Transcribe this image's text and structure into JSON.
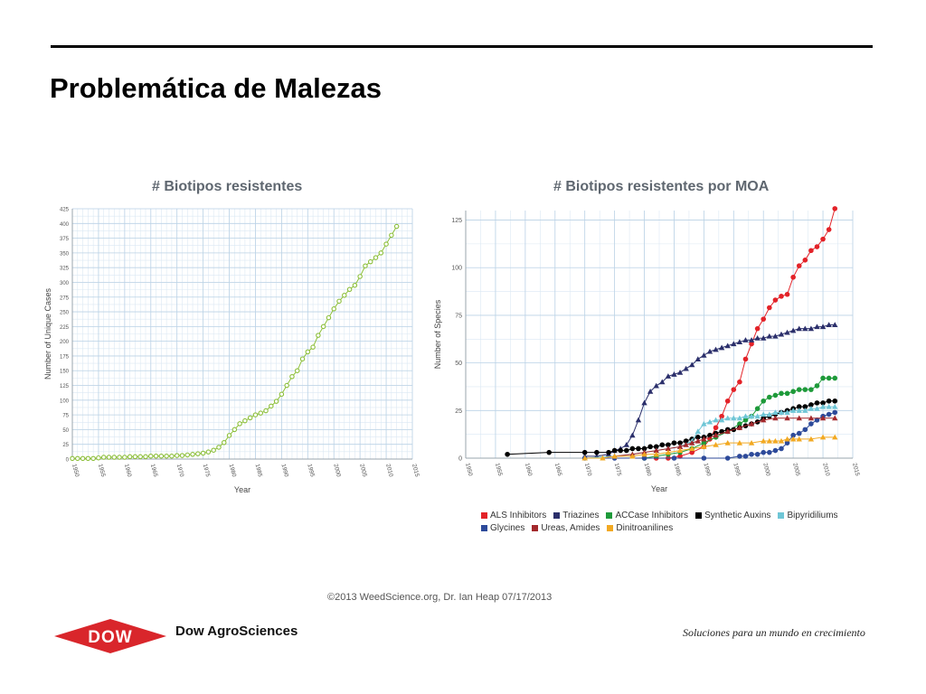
{
  "page": {
    "title": "Problemática de Malezas"
  },
  "footer": {
    "credit": "©2013 WeedScience.org, Dr. Ian Heap 07/17/2013",
    "company": "Dow AgroSciences",
    "logo_text": "DOW",
    "tagline": "Soluciones para un mundo en crecimiento"
  },
  "colors": {
    "ALS Inhibitors": "#e32228",
    "Triazines": "#2b2f6b",
    "ACCase Inhibitors": "#1e9a3a",
    "Synthetic Auxins": "#000000",
    "Bipyridiliums": "#6fc6d6",
    "Glycines": "#2d4a9a",
    "Ureas, Amides": "#a3282c",
    "Dinitroanilines": "#f2a922",
    "left_series": "#8cbf3a",
    "dow_red": "#d9262b"
  },
  "chart_data": [
    {
      "type": "scatter",
      "title": "# Biotipos resistentes",
      "xlabel": "Year",
      "ylabel": "Number of Unique Cases",
      "xlim": [
        1950,
        2015
      ],
      "ylim": [
        0,
        425
      ],
      "xticks": [
        1950,
        1955,
        1960,
        1965,
        1970,
        1975,
        1980,
        1985,
        1990,
        1995,
        2000,
        2005,
        2010,
        2015
      ],
      "yticks": [
        0,
        25,
        50,
        75,
        100,
        125,
        150,
        175,
        200,
        225,
        250,
        275,
        300,
        325,
        350,
        375,
        400,
        425
      ],
      "grid": true,
      "series": [
        {
          "x": [
            1950,
            1951,
            1952,
            1953,
            1954,
            1955,
            1956,
            1957,
            1958,
            1959,
            1960,
            1961,
            1962,
            1963,
            1964,
            1965,
            1966,
            1967,
            1968,
            1969,
            1970,
            1971,
            1972,
            1973,
            1974,
            1975,
            1976,
            1977,
            1978,
            1979,
            1980,
            1981,
            1982,
            1983,
            1984,
            1985,
            1986,
            1987,
            1988,
            1989,
            1990,
            1991,
            1992,
            1993,
            1994,
            1995,
            1996,
            1997,
            1998,
            1999,
            2000,
            2001,
            2002,
            2003,
            2004,
            2005,
            2006,
            2007,
            2008,
            2009,
            2010,
            2011,
            2012
          ],
          "values": [
            1,
            1,
            1,
            1,
            1,
            2,
            3,
            3,
            3,
            3,
            3,
            4,
            4,
            4,
            4,
            5,
            5,
            5,
            5,
            5,
            6,
            6,
            7,
            8,
            9,
            10,
            12,
            15,
            20,
            28,
            40,
            50,
            60,
            65,
            70,
            75,
            78,
            82,
            90,
            98,
            110,
            125,
            140,
            150,
            170,
            182,
            190,
            210,
            225,
            240,
            255,
            268,
            278,
            288,
            295,
            310,
            328,
            335,
            342,
            350,
            365,
            380,
            395
          ]
        }
      ]
    },
    {
      "type": "line",
      "title": "# Biotipos resistentes por MOA",
      "xlabel": "Year",
      "ylabel": "Number of Species",
      "xlim": [
        1950,
        2015
      ],
      "ylim": [
        0,
        130
      ],
      "xticks": [
        1950,
        1955,
        1960,
        1965,
        1970,
        1975,
        1980,
        1985,
        1990,
        1995,
        2000,
        2005,
        2010,
        2015
      ],
      "yticks": [
        0,
        25,
        50,
        75,
        100,
        125
      ],
      "grid": true,
      "legend": "bottom",
      "series": [
        {
          "name": "ALS Inhibitors",
          "marker": "circle",
          "x": [
            1982,
            1984,
            1986,
            1988,
            1990,
            1991,
            1992,
            1993,
            1994,
            1995,
            1996,
            1997,
            1998,
            1999,
            2000,
            2001,
            2002,
            2003,
            2004,
            2005,
            2006,
            2007,
            2008,
            2009,
            2010,
            2011,
            2012
          ],
          "values": [
            0,
            0,
            1,
            3,
            6,
            10,
            16,
            22,
            30,
            36,
            40,
            52,
            60,
            68,
            73,
            79,
            83,
            85,
            86,
            95,
            101,
            104,
            109,
            111,
            115,
            120,
            131
          ]
        },
        {
          "name": "Triazines",
          "marker": "triangle",
          "x": [
            1970,
            1972,
            1974,
            1975,
            1976,
            1977,
            1978,
            1979,
            1980,
            1981,
            1982,
            1983,
            1984,
            1985,
            1986,
            1987,
            1988,
            1989,
            1990,
            1991,
            1992,
            1993,
            1994,
            1995,
            1996,
            1997,
            1998,
            1999,
            2000,
            2001,
            2002,
            2003,
            2004,
            2005,
            2006,
            2007,
            2008,
            2009,
            2010,
            2011,
            2012
          ],
          "values": [
            1,
            1,
            2,
            4,
            5,
            7,
            12,
            20,
            29,
            35,
            38,
            40,
            43,
            44,
            45,
            47,
            49,
            52,
            54,
            56,
            57,
            58,
            59,
            60,
            61,
            62,
            62,
            63,
            63,
            64,
            64,
            65,
            66,
            67,
            68,
            68,
            68,
            69,
            69,
            70,
            70
          ]
        },
        {
          "name": "ACCase Inhibitors",
          "marker": "circle",
          "x": [
            1980,
            1982,
            1984,
            1986,
            1988,
            1990,
            1992,
            1994,
            1996,
            1997,
            1998,
            1999,
            2000,
            2001,
            2002,
            2003,
            2004,
            2005,
            2006,
            2007,
            2008,
            2009,
            2010,
            2011,
            2012
          ],
          "values": [
            0,
            1,
            2,
            3,
            5,
            8,
            11,
            14,
            18,
            20,
            22,
            26,
            30,
            32,
            33,
            34,
            34,
            35,
            36,
            36,
            36,
            38,
            42,
            42,
            42
          ]
        },
        {
          "name": "Synthetic Auxins",
          "marker": "circle",
          "x": [
            1957,
            1964,
            1970,
            1972,
            1974,
            1975,
            1976,
            1977,
            1978,
            1979,
            1980,
            1981,
            1982,
            1983,
            1984,
            1985,
            1986,
            1987,
            1988,
            1989,
            1990,
            1991,
            1992,
            1993,
            1994,
            1995,
            1996,
            1997,
            1998,
            1999,
            2000,
            2001,
            2002,
            2003,
            2004,
            2005,
            2006,
            2007,
            2008,
            2009,
            2010,
            2011,
            2012
          ],
          "values": [
            2,
            3,
            3,
            3,
            3,
            4,
            4,
            4,
            5,
            5,
            5,
            6,
            6,
            7,
            7,
            8,
            8,
            9,
            10,
            11,
            11,
            12,
            13,
            14,
            15,
            15,
            16,
            17,
            18,
            19,
            21,
            22,
            23,
            24,
            25,
            26,
            27,
            27,
            28,
            29,
            29,
            30,
            30
          ]
        },
        {
          "name": "Bipyridiliums",
          "marker": "triangle",
          "x": [
            1970,
            1975,
            1978,
            1980,
            1982,
            1984,
            1986,
            1988,
            1989,
            1990,
            1991,
            1992,
            1993,
            1994,
            1995,
            1996,
            1997,
            1998,
            1999,
            2000,
            2001,
            2002,
            2003,
            2004,
            2005,
            2006,
            2007,
            2008,
            2009,
            2010,
            2011,
            2012
          ],
          "values": [
            0,
            1,
            2,
            3,
            4,
            5,
            6,
            9,
            14,
            18,
            19,
            20,
            20,
            21,
            21,
            21,
            22,
            22,
            22,
            23,
            23,
            24,
            24,
            24,
            25,
            25,
            25,
            26,
            26,
            27,
            27,
            27
          ]
        },
        {
          "name": "Glycines",
          "marker": "circle",
          "x": [
            1970,
            1975,
            1980,
            1985,
            1990,
            1994,
            1996,
            1997,
            1998,
            1999,
            2000,
            2001,
            2002,
            2003,
            2004,
            2005,
            2006,
            2007,
            2008,
            2009,
            2010,
            2011,
            2012
          ],
          "values": [
            0,
            0,
            0,
            0,
            0,
            0,
            1,
            1,
            2,
            2,
            3,
            3,
            4,
            5,
            8,
            12,
            13,
            15,
            18,
            20,
            22,
            23,
            24
          ]
        },
        {
          "name": "Ureas, Amides",
          "marker": "triangle",
          "x": [
            1975,
            1978,
            1980,
            1982,
            1984,
            1986,
            1987,
            1988,
            1989,
            1990,
            1992,
            1994,
            1996,
            1998,
            2000,
            2002,
            2004,
            2006,
            2008,
            2010,
            2012
          ],
          "values": [
            1,
            2,
            3,
            4,
            5,
            6,
            7,
            8,
            9,
            10,
            12,
            14,
            16,
            18,
            20,
            21,
            21,
            21,
            21,
            21,
            21
          ]
        },
        {
          "name": "Dinitroanilines",
          "marker": "triangle",
          "x": [
            1970,
            1973,
            1975,
            1978,
            1980,
            1982,
            1984,
            1986,
            1988,
            1990,
            1992,
            1994,
            1996,
            1998,
            2000,
            2001,
            2002,
            2003,
            2004,
            2005,
            2006,
            2008,
            2010,
            2012
          ],
          "values": [
            0,
            0,
            1,
            1,
            2,
            2,
            3,
            4,
            5,
            6,
            7,
            8,
            8,
            8,
            9,
            9,
            9,
            9,
            10,
            10,
            10,
            10,
            11,
            11
          ]
        }
      ]
    }
  ]
}
